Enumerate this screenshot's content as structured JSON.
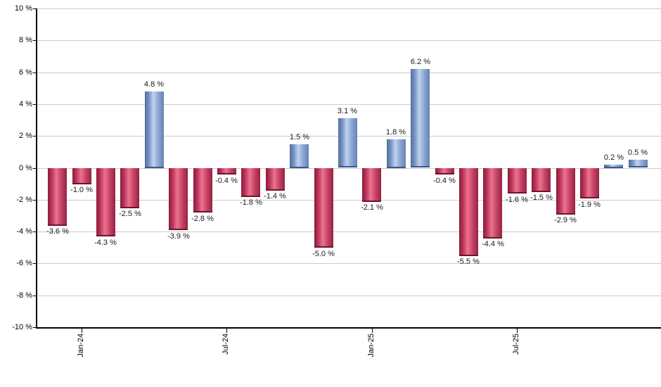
{
  "chart_data": {
    "type": "bar",
    "title": "",
    "grid": true,
    "legend": "none",
    "y_axis": {
      "min": -10,
      "max": 10,
      "step": 2,
      "tick_labels": [
        "10 %",
        "8 %",
        "6 %",
        "4 %",
        "2 %",
        "0 %",
        "-2 %",
        "-4 %",
        "-6 %",
        "-8 %",
        "-10 %"
      ]
    },
    "x_axis": {
      "tick_labels": [
        "Jan-24",
        "Jul-24",
        "Jan-25",
        "Jul-25"
      ],
      "tick_bar_indices": [
        1,
        7,
        13,
        19
      ]
    },
    "values": [
      -3.6,
      -1.0,
      -4.3,
      -2.5,
      4.8,
      -3.9,
      -2.8,
      -0.4,
      -1.8,
      -1.4,
      1.5,
      -5.0,
      3.1,
      -2.1,
      1.8,
      6.2,
      -0.4,
      -5.5,
      -4.4,
      -1.6,
      -1.5,
      -2.9,
      -1.9,
      0.2,
      0.5
    ],
    "data_labels": [
      "-3.6 %",
      "-1.0 %",
      "-4.3 %",
      "-2.5 %",
      "4.8 %",
      "-3.9 %",
      "-2.8 %",
      "-0.4 %",
      "-1.8 %",
      "-1.4 %",
      "1.5 %",
      "-5.0 %",
      "3.1 %",
      "-2.1 %",
      "1.8 %",
      "6.2 %",
      "-0.4 %",
      "-5.5 %",
      "-4.4 %",
      "-1.6 %",
      "-1.5 %",
      "-2.9 %",
      "-1.9 %",
      "0.2 %",
      "0.5 %"
    ],
    "colors": {
      "positive_base": "#6d8cbb",
      "positive_gradient": [
        "#52709e",
        "#7490c0",
        "#bfd2f0",
        "#8aa5d2",
        "#6482b2"
      ],
      "positive_cap": "#3c587f",
      "negative_base": "#c23458",
      "negative_gradient": [
        "#8c1b3d",
        "#b93458",
        "#ec7390",
        "#c44263",
        "#972245"
      ],
      "negative_cap": "#701332",
      "gridline": "#cbcbcb",
      "axis": "#000000",
      "label_text": "#1a1a1a",
      "background": "#ffffff"
    }
  }
}
